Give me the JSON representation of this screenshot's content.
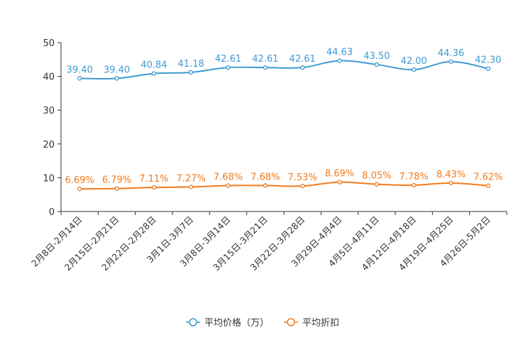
{
  "chart_data": {
    "type": "line",
    "title": "",
    "xlabel": "",
    "ylabel": "",
    "ylim": [
      0,
      50
    ],
    "yticks": [
      0,
      10,
      20,
      30,
      40,
      50
    ],
    "categories": [
      "2月8日-2月14日",
      "2月15日-2月21日",
      "2月22日-2月28日",
      "3月1日-3月7日",
      "3月8日-3月14日",
      "3月15日-3月21日",
      "3月22日-3月28日",
      "3月29日-4月4日",
      "4月5日-4月11日",
      "4月12日-4月18日",
      "4月19日-4月25日",
      "4月26日-5月2日"
    ],
    "series": [
      {
        "name": "平均价格（万）",
        "color": "#3d9ad1",
        "values": [
          39.4,
          39.4,
          40.84,
          41.18,
          42.61,
          42.61,
          42.61,
          44.63,
          43.5,
          42.0,
          44.36,
          42.3
        ],
        "labels": [
          "39.40",
          "39.40",
          "40.84",
          "41.18",
          "42.61",
          "42.61",
          "42.61",
          "44.63",
          "43.50",
          "42.00",
          "44.36",
          "42.30"
        ]
      },
      {
        "name": "平均折扣",
        "color": "#f07b1d",
        "values": [
          6.69,
          6.79,
          7.11,
          7.27,
          7.68,
          7.68,
          7.53,
          8.69,
          8.05,
          7.78,
          8.43,
          7.62
        ],
        "labels": [
          "6.69%",
          "6.79%",
          "7.11%",
          "7.27%",
          "7.68%",
          "7.68%",
          "7.53%",
          "8.69%",
          "8.05%",
          "7.78%",
          "8.43%",
          "7.62%"
        ]
      }
    ],
    "legend": "bottom-center",
    "grid": false
  }
}
